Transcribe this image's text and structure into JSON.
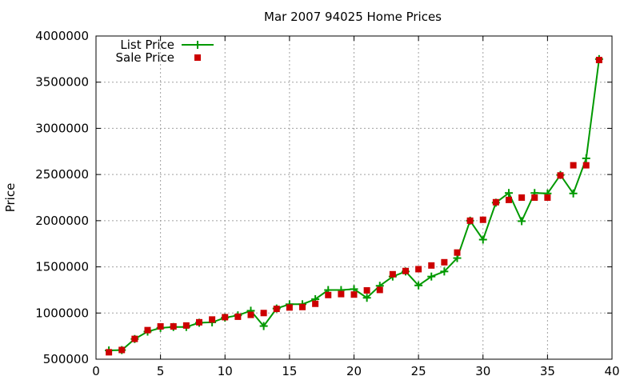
{
  "chart_data": {
    "type": "scatter",
    "title": "Mar 2007 94025 Home Prices",
    "xlabel": "",
    "ylabel": "Price",
    "xlim": [
      0,
      40
    ],
    "ylim": [
      500000,
      4000000
    ],
    "xticks": [
      0,
      5,
      10,
      15,
      20,
      25,
      30,
      35,
      40
    ],
    "yticks": [
      500000,
      1000000,
      1500000,
      2000000,
      2500000,
      3000000,
      3500000,
      4000000
    ],
    "grid": true,
    "legend_position": "top-left",
    "series": [
      {
        "name": "List Price",
        "style": "linespoints",
        "color": "#009900",
        "marker": "plus",
        "x": [
          1,
          2,
          3,
          4,
          5,
          6,
          7,
          8,
          9,
          10,
          11,
          12,
          13,
          14,
          15,
          16,
          17,
          18,
          19,
          20,
          21,
          22,
          23,
          24,
          25,
          26,
          27,
          28,
          29,
          30,
          31,
          32,
          33,
          34,
          35,
          36,
          37,
          38,
          39
        ],
        "y": [
          595000,
          599000,
          719000,
          799000,
          839000,
          849000,
          849000,
          895000,
          899000,
          950000,
          975000,
          1025000,
          859000,
          1049000,
          1095000,
          1095000,
          1150000,
          1249000,
          1249000,
          1259000,
          1165000,
          1295000,
          1395000,
          1450000,
          1299000,
          1395000,
          1450000,
          1595000,
          2000000,
          1795000,
          2195000,
          2300000,
          1995000,
          2300000,
          2295000,
          2495000,
          2295000,
          2675000,
          3750000
        ]
      },
      {
        "name": "Sale Price",
        "style": "points",
        "color": "#cc0000",
        "marker": "square",
        "x": [
          1,
          2,
          3,
          4,
          5,
          6,
          7,
          8,
          9,
          10,
          11,
          12,
          13,
          14,
          15,
          16,
          17,
          18,
          19,
          20,
          21,
          22,
          23,
          24,
          25,
          26,
          27,
          28,
          29,
          30,
          31,
          32,
          33,
          34,
          35,
          36,
          37,
          38,
          39
        ],
        "y": [
          575000,
          600000,
          720000,
          815000,
          855000,
          855000,
          865000,
          900000,
          930000,
          955000,
          960000,
          980000,
          1000000,
          1045000,
          1060000,
          1065000,
          1100000,
          1195000,
          1205000,
          1200000,
          1245000,
          1250000,
          1420000,
          1455000,
          1475000,
          1515000,
          1550000,
          1655000,
          2000000,
          2010000,
          2200000,
          2225000,
          2250000,
          2250000,
          2250000,
          2490000,
          2600000,
          2600000,
          3740000
        ]
      }
    ]
  }
}
